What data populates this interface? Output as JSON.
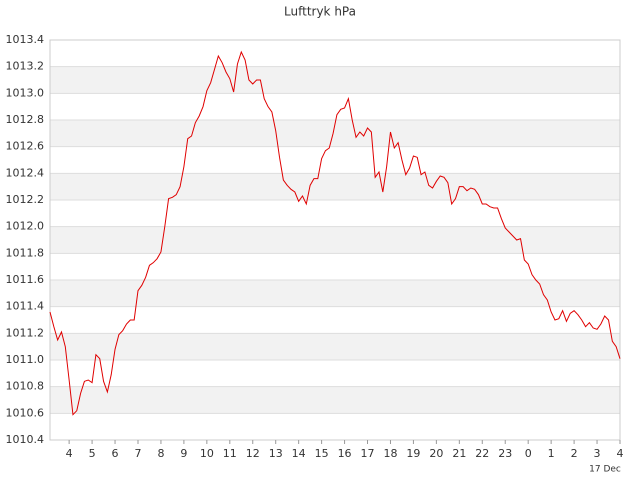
{
  "chart_data": {
    "type": "line",
    "title": "Lufttryk hPa",
    "annotation": "17 Dec",
    "grid": true,
    "banded": true,
    "series": [
      {
        "name": "Lufttryk",
        "color": "#e00000",
        "x": [
          190,
          200,
          210,
          220,
          230,
          240,
          250,
          260,
          270,
          280,
          290,
          300,
          310,
          320,
          330,
          340,
          350,
          360,
          370,
          380,
          390,
          400,
          410,
          420,
          430,
          440,
          450,
          460,
          470,
          480,
          490,
          500,
          510,
          520,
          530,
          540,
          550,
          560,
          570,
          580,
          590,
          600,
          610,
          620,
          630,
          640,
          650,
          660,
          670,
          680,
          690,
          700,
          710,
          720,
          730,
          740,
          750,
          760,
          770,
          780,
          790,
          800,
          810,
          820,
          830,
          840,
          850,
          860,
          870,
          880,
          890,
          900,
          910,
          920,
          930,
          940,
          950,
          960,
          970,
          980,
          990,
          1000,
          1010,
          1020,
          1030,
          1040,
          1050,
          1060,
          1070,
          1080,
          1090,
          1100,
          1110,
          1120,
          1130,
          1140,
          1150,
          1160,
          1170,
          1180,
          1190,
          1200,
          1210,
          1220,
          1230,
          1240,
          1250,
          1260,
          1270,
          1280,
          1290,
          1300,
          1310,
          1320,
          1330,
          1340,
          1350,
          1360,
          1370,
          1380,
          1390,
          1400,
          1410,
          1420,
          1430,
          1440,
          1450,
          1460,
          1470,
          1480,
          1490,
          1500,
          1510,
          1520,
          1530,
          1540,
          1550,
          1560,
          1570,
          1580,
          1590,
          1600,
          1610,
          1620,
          1630,
          1640,
          1650,
          1660,
          1670,
          1680
        ],
        "values": [
          1011.36,
          1011.25,
          1011.15,
          1011.21,
          1011.1,
          1010.85,
          1010.59,
          1010.62,
          1010.75,
          1010.84,
          1010.85,
          1010.83,
          1011.04,
          1011.01,
          1010.84,
          1010.76,
          1010.89,
          1011.08,
          1011.19,
          1011.22,
          1011.27,
          1011.3,
          1011.3,
          1011.52,
          1011.56,
          1011.62,
          1011.71,
          1011.73,
          1011.76,
          1011.81,
          1012.0,
          1012.21,
          1012.22,
          1012.24,
          1012.3,
          1012.45,
          1012.66,
          1012.68,
          1012.78,
          1012.83,
          1012.9,
          1013.02,
          1013.08,
          1013.18,
          1013.28,
          1013.23,
          1013.16,
          1013.11,
          1013.01,
          1013.22,
          1013.31,
          1013.25,
          1013.1,
          1013.07,
          1013.1,
          1013.1,
          1012.96,
          1012.9,
          1012.86,
          1012.72,
          1012.52,
          1012.35,
          1012.31,
          1012.28,
          1012.26,
          1012.19,
          1012.23,
          1012.17,
          1012.31,
          1012.36,
          1012.36,
          1012.51,
          1012.57,
          1012.59,
          1012.7,
          1012.84,
          1012.88,
          1012.89,
          1012.96,
          1012.8,
          1012.67,
          1012.71,
          1012.68,
          1012.74,
          1012.71,
          1012.37,
          1012.41,
          1012.26,
          1012.45,
          1012.71,
          1012.59,
          1012.63,
          1012.5,
          1012.39,
          1012.44,
          1012.53,
          1012.52,
          1012.39,
          1012.41,
          1012.31,
          1012.29,
          1012.34,
          1012.38,
          1012.37,
          1012.33,
          1012.17,
          1012.21,
          1012.3,
          1012.3,
          1012.27,
          1012.29,
          1012.28,
          1012.24,
          1012.17,
          1012.17,
          1012.15,
          1012.14,
          1012.14,
          1012.06,
          1011.99,
          1011.96,
          1011.93,
          1011.9,
          1011.91,
          1011.75,
          1011.72,
          1011.64,
          1011.6,
          1011.57,
          1011.49,
          1011.45,
          1011.36,
          1011.3,
          1011.31,
          1011.37,
          1011.29,
          1011.35,
          1011.37,
          1011.34,
          1011.3,
          1011.25,
          1011.28,
          1011.24,
          1011.23,
          1011.27,
          1011.33,
          1011.3,
          1011.14,
          1011.1,
          1011.01
        ]
      }
    ],
    "xlim": [
      190,
      1680
    ],
    "xticks": [
      {
        "value": 240,
        "label": "4"
      },
      {
        "value": 300,
        "label": "5"
      },
      {
        "value": 360,
        "label": "6"
      },
      {
        "value": 420,
        "label": "7"
      },
      {
        "value": 480,
        "label": "8"
      },
      {
        "value": 540,
        "label": "9"
      },
      {
        "value": 600,
        "label": "10"
      },
      {
        "value": 660,
        "label": "11"
      },
      {
        "value": 720,
        "label": "12"
      },
      {
        "value": 780,
        "label": "13"
      },
      {
        "value": 840,
        "label": "14"
      },
      {
        "value": 900,
        "label": "15"
      },
      {
        "value": 960,
        "label": "16"
      },
      {
        "value": 1020,
        "label": "17"
      },
      {
        "value": 1080,
        "label": "18"
      },
      {
        "value": 1140,
        "label": "19"
      },
      {
        "value": 1200,
        "label": "20"
      },
      {
        "value": 1260,
        "label": "21"
      },
      {
        "value": 1320,
        "label": "22"
      },
      {
        "value": 1380,
        "label": "23"
      },
      {
        "value": 1440,
        "label": "0"
      },
      {
        "value": 1500,
        "label": "1"
      },
      {
        "value": 1560,
        "label": "2"
      },
      {
        "value": 1620,
        "label": "3"
      },
      {
        "value": 1680,
        "label": "4"
      }
    ],
    "ylim": [
      1010.4,
      1013.4
    ],
    "yticks": [
      1010.4,
      1010.6,
      1010.8,
      {
        "value": 1011,
        "label": "1011.0"
      },
      1011.2,
      1011.4,
      1011.6,
      1011.8,
      {
        "value": 1012,
        "label": "1012.0"
      },
      1012.2,
      1012.4,
      1012.6,
      1012.8,
      {
        "value": 1013,
        "label": "1013.0"
      },
      1013.2,
      1013.4
    ]
  }
}
